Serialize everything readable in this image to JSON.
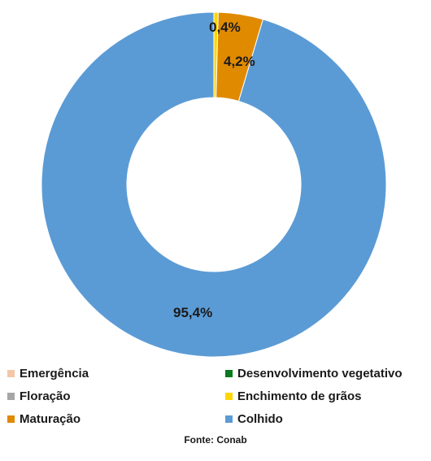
{
  "chart_data": {
    "type": "pie",
    "variant": "donut",
    "title": "",
    "categories": [
      "Emergência",
      "Desenvolvimento vegetativo",
      "Floração",
      "Enchimento de grãos",
      "Maturação",
      "Colhido"
    ],
    "values": [
      0,
      0,
      0,
      0.4,
      4.2,
      95.4
    ],
    "unit": "%",
    "data_labels": [
      "",
      "",
      "",
      "0,4%",
      "4,2%",
      "95,4%"
    ],
    "colors": [
      "#f4c7a8",
      "#0a7a1e",
      "#a6a6a6",
      "#ffd500",
      "#e08a00",
      "#5b9bd5"
    ],
    "legend_position": "bottom"
  },
  "legend": [
    {
      "label": "Emergência",
      "color": "#f4c7a8"
    },
    {
      "label": "Desenvolvimento vegetativo",
      "color": "#0a7a1e"
    },
    {
      "label": "Floração",
      "color": "#a6a6a6"
    },
    {
      "label": "Enchimento de grãos",
      "color": "#ffd500"
    },
    {
      "label": "Maturação",
      "color": "#e08a00"
    },
    {
      "label": "Colhido",
      "color": "#5b9bd5"
    }
  ],
  "source": "Fonte: Conab"
}
